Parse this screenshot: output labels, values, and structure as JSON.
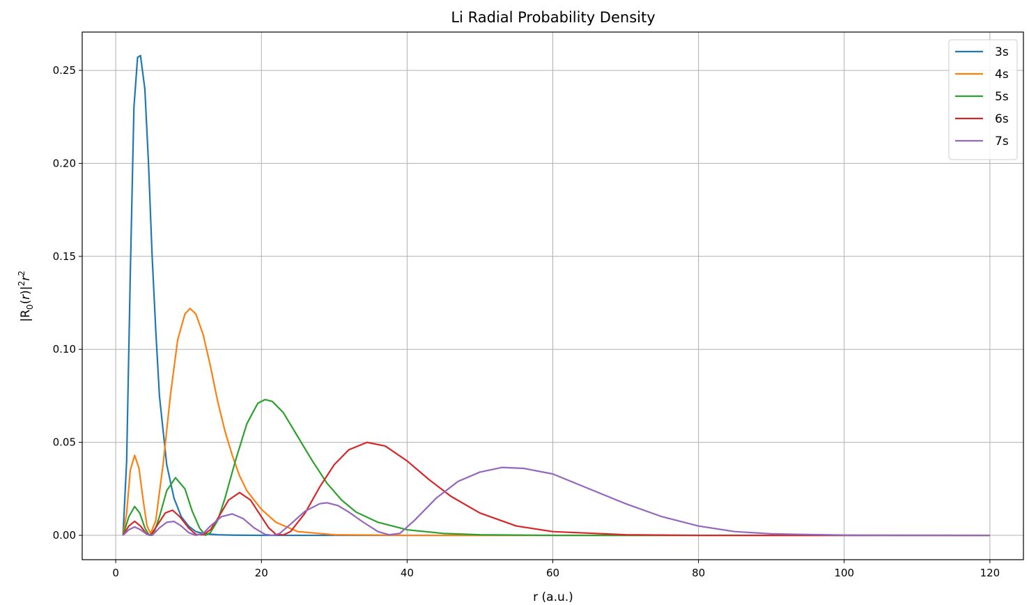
{
  "chart_data": {
    "type": "line",
    "title": "Li Radial Probability Density",
    "xlabel": "r (a.u.)",
    "ylabel_parts": {
      "base": "|R",
      "sub": "0",
      "mid": "(",
      "var": "r",
      "mid2": ")|",
      "sup1": "2",
      "var2": "r",
      "sup2": "2"
    },
    "xlim": [
      -4.6,
      124.6
    ],
    "ylim": [
      -0.0131,
      0.2706
    ],
    "xticks": [
      0,
      20,
      40,
      60,
      80,
      100,
      120
    ],
    "xtick_labels": [
      "0",
      "20",
      "40",
      "60",
      "80",
      "100",
      "120"
    ],
    "yticks": [
      0.0,
      0.05,
      0.1,
      0.15,
      0.2,
      0.25
    ],
    "ytick_labels": [
      "0.00",
      "0.05",
      "0.10",
      "0.15",
      "0.20",
      "0.25"
    ],
    "grid": true,
    "legend_position": "top-right",
    "series": [
      {
        "name": "3s",
        "color": "#1f77b4",
        "x": [
          1.0,
          1.5,
          2.0,
          2.5,
          3.0,
          3.4,
          4.0,
          4.5,
          5.0,
          5.5,
          6.0,
          7.0,
          8.0,
          9.0,
          10.0,
          11.0,
          12.0,
          14.0,
          16.0,
          20.0,
          30.0,
          120.0
        ],
        "y": [
          0.0,
          0.04,
          0.14,
          0.23,
          0.257,
          0.258,
          0.24,
          0.2,
          0.15,
          0.11,
          0.075,
          0.038,
          0.02,
          0.01,
          0.005,
          0.002,
          0.001,
          0.0003,
          0.0001,
          0.0,
          0.0,
          0.0
        ]
      },
      {
        "name": "4s",
        "color": "#ff7f0e",
        "x": [
          1.0,
          1.5,
          2.0,
          2.6,
          3.2,
          3.8,
          4.3,
          4.8,
          5.5,
          6.5,
          7.5,
          8.5,
          9.5,
          10.2,
          11.0,
          12.0,
          13.0,
          14.0,
          15.0,
          16.0,
          17.0,
          18.0,
          20.0,
          22.0,
          25.0,
          30.0,
          40.0,
          120.0
        ],
        "y": [
          0.0,
          0.012,
          0.035,
          0.043,
          0.036,
          0.018,
          0.005,
          0.001,
          0.008,
          0.038,
          0.075,
          0.105,
          0.119,
          0.122,
          0.119,
          0.108,
          0.091,
          0.072,
          0.056,
          0.043,
          0.032,
          0.024,
          0.014,
          0.007,
          0.002,
          0.0003,
          0.0,
          0.0
        ]
      },
      {
        "name": "5s",
        "color": "#2ca02c",
        "x": [
          1.0,
          1.8,
          2.6,
          3.3,
          4.0,
          4.6,
          5.3,
          6.0,
          7.0,
          8.2,
          9.5,
          10.5,
          11.5,
          12.3,
          13.0,
          14.0,
          15.0,
          16.5,
          18.0,
          19.5,
          20.5,
          21.5,
          23.0,
          25.0,
          27.0,
          29.0,
          31.0,
          33.0,
          36.0,
          40.0,
          45.0,
          50.0,
          60.0,
          120.0
        ],
        "y": [
          0.0,
          0.01,
          0.0155,
          0.012,
          0.004,
          0.0,
          0.002,
          0.01,
          0.024,
          0.031,
          0.025,
          0.013,
          0.004,
          0.0,
          0.0015,
          0.008,
          0.02,
          0.041,
          0.06,
          0.071,
          0.073,
          0.072,
          0.066,
          0.053,
          0.04,
          0.028,
          0.019,
          0.0125,
          0.007,
          0.003,
          0.001,
          0.0003,
          0.0,
          0.0
        ]
      },
      {
        "name": "6s",
        "color": "#d62728",
        "x": [
          1.0,
          1.8,
          2.6,
          3.4,
          4.2,
          4.8,
          5.8,
          6.8,
          7.8,
          8.8,
          10.0,
          11.0,
          12.0,
          13.0,
          14.0,
          15.5,
          17.0,
          18.5,
          20.0,
          21.0,
          22.0,
          23.0,
          24.0,
          26.0,
          28.0,
          30.0,
          32.0,
          34.5,
          37.0,
          40.0,
          43.0,
          46.0,
          50.0,
          55.0,
          60.0,
          70.0,
          80.0,
          120.0
        ],
        "y": [
          0.0,
          0.005,
          0.0075,
          0.005,
          0.001,
          0.0,
          0.006,
          0.012,
          0.0135,
          0.01,
          0.004,
          0.0005,
          0.0003,
          0.003,
          0.009,
          0.019,
          0.023,
          0.019,
          0.01,
          0.004,
          0.0005,
          0.0002,
          0.002,
          0.012,
          0.026,
          0.038,
          0.046,
          0.05,
          0.048,
          0.04,
          0.03,
          0.021,
          0.012,
          0.005,
          0.002,
          0.0003,
          0.0,
          0.0
        ]
      },
      {
        "name": "7s",
        "color": "#9467bd",
        "x": [
          1.0,
          1.8,
          2.6,
          3.4,
          4.3,
          5.0,
          6.0,
          7.0,
          8.0,
          9.0,
          10.0,
          11.0,
          12.0,
          13.0,
          14.5,
          16.0,
          17.5,
          19.0,
          20.5,
          21.5,
          22.5,
          24.0,
          26.0,
          28.0,
          29.0,
          30.5,
          32.0,
          34.0,
          36.0,
          37.5,
          39.0,
          41.0,
          44.0,
          47.0,
          50.0,
          53.0,
          56.0,
          60.0,
          65.0,
          70.0,
          75.0,
          80.0,
          85.0,
          90.0,
          100.0,
          120.0
        ],
        "y": [
          0.0,
          0.003,
          0.0045,
          0.003,
          0.0005,
          0.0,
          0.004,
          0.007,
          0.0075,
          0.005,
          0.0015,
          0.0,
          0.001,
          0.005,
          0.01,
          0.0115,
          0.009,
          0.004,
          0.0005,
          0.0,
          0.001,
          0.006,
          0.013,
          0.017,
          0.0175,
          0.016,
          0.0125,
          0.007,
          0.002,
          0.0003,
          0.001,
          0.008,
          0.02,
          0.029,
          0.034,
          0.0365,
          0.036,
          0.033,
          0.025,
          0.017,
          0.01,
          0.005,
          0.002,
          0.0008,
          0.0001,
          0.0
        ]
      }
    ]
  }
}
